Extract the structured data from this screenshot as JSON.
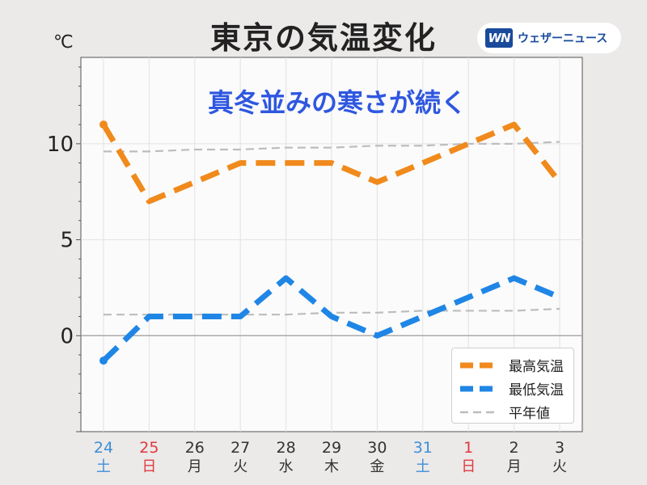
{
  "title": "東京の気温変化",
  "unit_label": "℃",
  "brand": {
    "logo_text": "WN",
    "name": "ウェザーニュース"
  },
  "colors": {
    "high": "#f08a1c",
    "low": "#1f86e6",
    "normal": "#bdbdbd",
    "saturday": "#3c8fd8",
    "sunday": "#e0393e",
    "weekday": "#333333",
    "annotation": "#2f57e0"
  },
  "chart_data": {
    "type": "line",
    "title": "東京の気温変化",
    "annotation": "真冬並みの寒さが続く",
    "ylabel": "℃",
    "ylim": [
      -5,
      14.5
    ],
    "yticks": [
      0,
      5,
      10
    ],
    "grid": true,
    "legend_position": "bottom-right",
    "x": [
      {
        "day": "24",
        "weekday": "土",
        "type": "saturday"
      },
      {
        "day": "25",
        "weekday": "日",
        "type": "sunday"
      },
      {
        "day": "26",
        "weekday": "月",
        "type": "weekday"
      },
      {
        "day": "27",
        "weekday": "火",
        "type": "weekday"
      },
      {
        "day": "28",
        "weekday": "水",
        "type": "weekday"
      },
      {
        "day": "29",
        "weekday": "木",
        "type": "weekday"
      },
      {
        "day": "30",
        "weekday": "金",
        "type": "weekday"
      },
      {
        "day": "31",
        "weekday": "土",
        "type": "saturday"
      },
      {
        "day": "1",
        "weekday": "日",
        "type": "sunday"
      },
      {
        "day": "2",
        "weekday": "月",
        "type": "weekday"
      },
      {
        "day": "3",
        "weekday": "火",
        "type": "weekday"
      }
    ],
    "series": [
      {
        "name": "最高気温",
        "key": "high",
        "style": "thick-dashed",
        "values": [
          11,
          7,
          8,
          9,
          9,
          9,
          8,
          9,
          10,
          11,
          8
        ]
      },
      {
        "name": "最低気温",
        "key": "low",
        "style": "thick-dashed",
        "values": [
          -1.3,
          1,
          1,
          1,
          3,
          1,
          0,
          1,
          2,
          3,
          2
        ]
      },
      {
        "name": "平年値",
        "key": "normal",
        "style": "thin-dashed",
        "values": [
          9.6,
          9.6,
          9.7,
          9.7,
          9.8,
          9.8,
          9.9,
          9.9,
          10.0,
          10.0,
          10.1
        ]
      },
      {
        "name": "平年値",
        "key": "normal",
        "style": "thin-dashed",
        "legend": false,
        "values": [
          1.1,
          1.1,
          1.1,
          1.1,
          1.1,
          1.2,
          1.2,
          1.3,
          1.3,
          1.3,
          1.4
        ]
      }
    ]
  }
}
